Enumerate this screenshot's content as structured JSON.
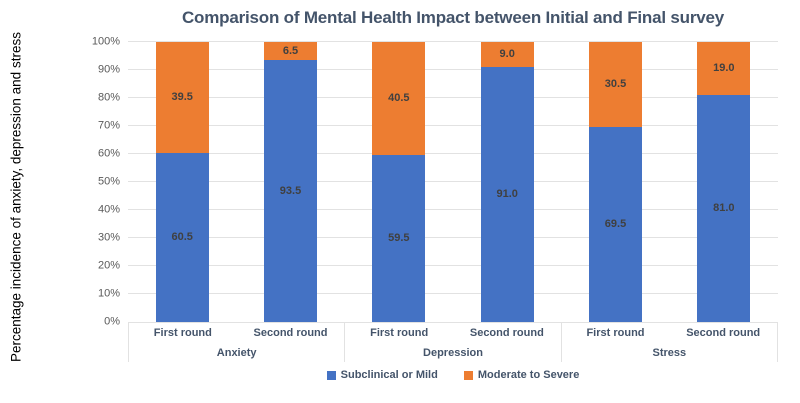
{
  "chart_data": {
    "type": "bar",
    "stacked": true,
    "title": "Comparison of Mental Health Impact between Initial and Final survey",
    "ylabel": "Percentage incidence of anxiety, depression and stress",
    "xlabel": "",
    "ylim": [
      0,
      100
    ],
    "grid": true,
    "legend_position": "bottom",
    "y_ticks": [
      "0%",
      "10%",
      "20%",
      "30%",
      "40%",
      "50%",
      "60%",
      "70%",
      "80%",
      "90%",
      "100%"
    ],
    "groups": [
      "Anxiety",
      "Depression",
      "Stress"
    ],
    "categories": [
      "First round",
      "Second round",
      "First round",
      "Second round",
      "First round",
      "Second round"
    ],
    "series": [
      {
        "name": "Subclinical or Mild",
        "color": "#4472C4",
        "values": [
          60.5,
          93.5,
          59.5,
          91.0,
          69.5,
          81.0
        ],
        "labels": [
          "60.5",
          "93.5",
          "59.5",
          "91.0",
          "69.5",
          "81.0"
        ]
      },
      {
        "name": "Moderate to Severe",
        "color": "#ED7D31",
        "values": [
          39.5,
          6.5,
          40.5,
          9.0,
          30.5,
          19.0
        ],
        "labels": [
          "39.5",
          "6.5",
          "40.5",
          "9.0",
          "30.5",
          "19.0"
        ]
      }
    ],
    "colors": {
      "title": "#44546A",
      "axis_text": "#44546A",
      "tick_text": "#595959",
      "value_label": "#404040",
      "ylabel_text": "#000000",
      "gridline": "#E2E2E2"
    }
  }
}
